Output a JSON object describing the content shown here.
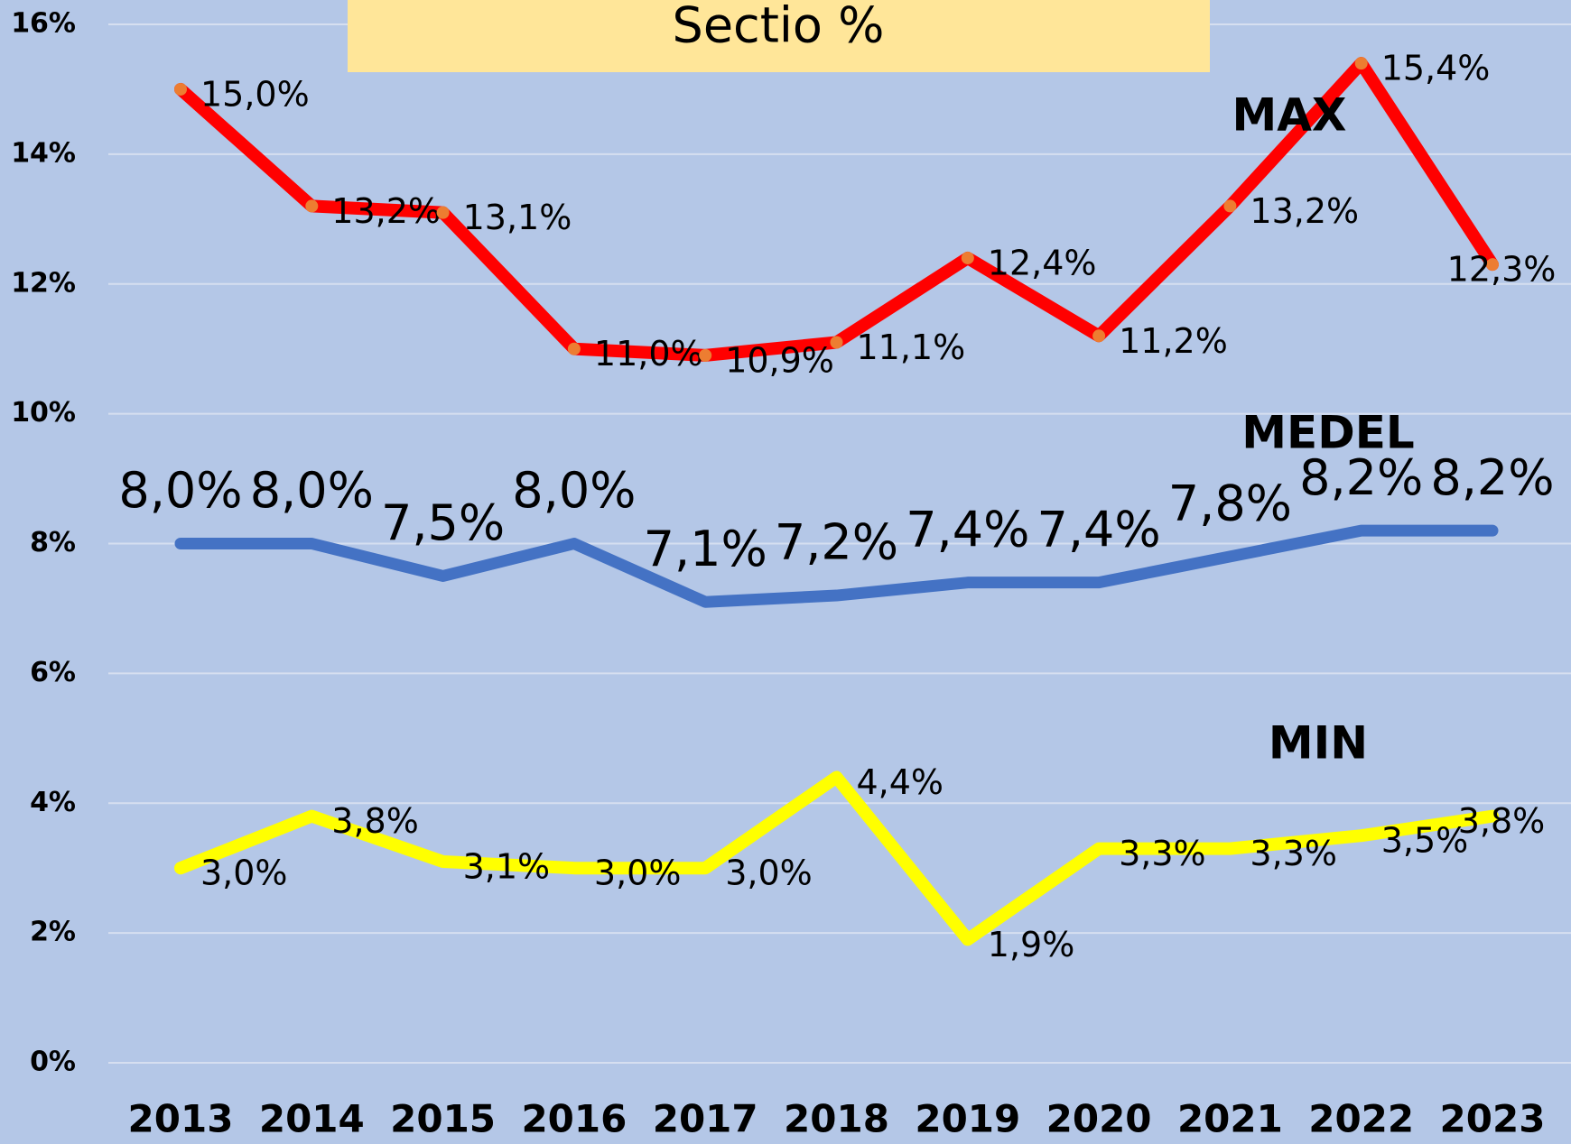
{
  "chart_data": {
    "type": "line",
    "title": "Sectio %",
    "categories": [
      "2013",
      "2014",
      "2015",
      "2016",
      "2017",
      "2018",
      "2019",
      "2020",
      "2021",
      "2022",
      "2023"
    ],
    "series": [
      {
        "name": "MAX",
        "color": "#ff0000",
        "marker_color": "#ed7d31",
        "values": [
          15.0,
          13.2,
          13.1,
          11.0,
          10.9,
          11.1,
          12.4,
          11.2,
          13.2,
          15.4,
          12.3
        ],
        "value_labels": [
          "15,0%",
          "13,2%",
          "13,1%",
          "11,0%",
          "10,9%",
          "11,1%",
          "12,4%",
          "11,2%",
          "13,2%",
          "15,4%",
          "12,3%"
        ]
      },
      {
        "name": "MEDEL",
        "color": "#4472c4",
        "values": [
          8.0,
          8.0,
          7.5,
          8.0,
          7.1,
          7.2,
          7.4,
          7.4,
          7.8,
          8.2,
          8.2
        ],
        "value_labels": [
          "8,0%",
          "8,0%",
          "7,5%",
          "8,0%",
          "7,1%",
          "7,2%",
          "7,4%",
          "7,4%",
          "7,8%",
          "8,2%",
          "8,2%"
        ]
      },
      {
        "name": "MIN",
        "color": "#ffff00",
        "values": [
          3.0,
          3.8,
          3.1,
          3.0,
          3.0,
          4.4,
          1.9,
          3.3,
          3.3,
          3.5,
          3.8
        ],
        "value_labels": [
          "3,0%",
          "3,8%",
          "3,1%",
          "3,0%",
          "3,0%",
          "4,4%",
          "1,9%",
          "3,3%",
          "3,3%",
          "3,5%",
          "3,8%"
        ]
      }
    ],
    "ylim": [
      0,
      16
    ],
    "yticks": [
      {
        "value": 0,
        "label": "0%"
      },
      {
        "value": 2,
        "label": "2%"
      },
      {
        "value": 4,
        "label": "4%"
      },
      {
        "value": 6,
        "label": "6%"
      },
      {
        "value": 8,
        "label": "8%"
      },
      {
        "value": 10,
        "label": "10%"
      },
      {
        "value": 12,
        "label": "12%"
      },
      {
        "value": 14,
        "label": "14%"
      },
      {
        "value": 16,
        "label": "16%"
      }
    ],
    "grid": true
  }
}
